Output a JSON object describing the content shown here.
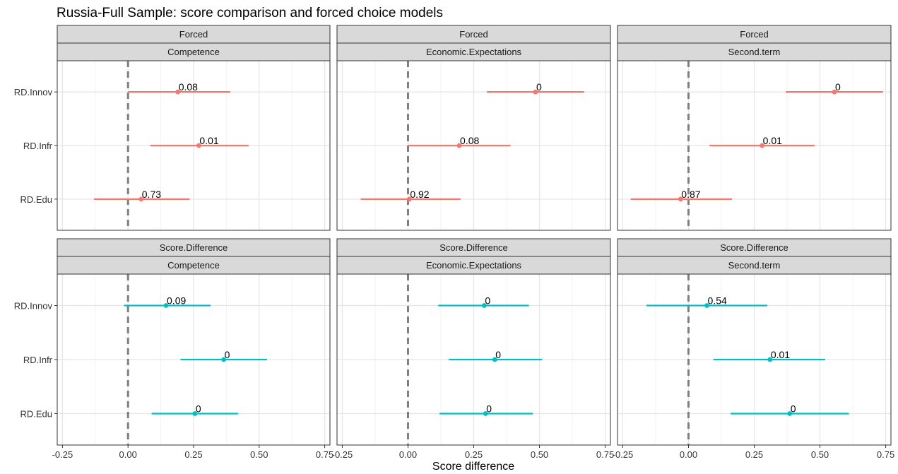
{
  "chart_data": {
    "type": "scatter",
    "subtype": "dot-and-whisker facet grid",
    "title": "Russia-Full Sample: score comparison and forced choice models",
    "xlabel": "Score difference",
    "ylabel": "",
    "xlim": [
      -0.27,
      0.77
    ],
    "x_ticks": [
      -0.25,
      0.0,
      0.25,
      0.5,
      0.75
    ],
    "x_tick_labels": [
      "-0.25",
      "0.00",
      "0.25",
      "0.50",
      "0.75"
    ],
    "reference_line": {
      "x": 0,
      "style": "dashed",
      "color": "#7f7f7f"
    },
    "categories": [
      "RD.Innov",
      "RD.Infr",
      "RD.Edu"
    ],
    "grid": true,
    "legend": "none",
    "colors": {
      "Forced": "#F8766D",
      "Score.Difference": "#00BFC4"
    },
    "panels": [
      {
        "row_label": "Forced",
        "col_label": "Competence",
        "points": [
          {
            "category": "RD.Innov",
            "estimate": 0.19,
            "low": 0.0,
            "high": 0.39,
            "label": "0.08"
          },
          {
            "category": "RD.Infr",
            "estimate": 0.27,
            "low": 0.085,
            "high": 0.46,
            "label": "0.01"
          },
          {
            "category": "RD.Edu",
            "estimate": 0.05,
            "low": -0.13,
            "high": 0.235,
            "label": "0.73"
          }
        ]
      },
      {
        "row_label": "Forced",
        "col_label": "Economic.Expectations",
        "points": [
          {
            "category": "RD.Innov",
            "estimate": 0.485,
            "low": 0.3,
            "high": 0.67,
            "label": "0"
          },
          {
            "category": "RD.Infr",
            "estimate": 0.195,
            "low": 0.0,
            "high": 0.39,
            "label": "0.08"
          },
          {
            "category": "RD.Edu",
            "estimate": 0.005,
            "low": -0.18,
            "high": 0.2,
            "label": "0.92"
          }
        ]
      },
      {
        "row_label": "Forced",
        "col_label": "Second.term",
        "points": [
          {
            "category": "RD.Innov",
            "estimate": 0.555,
            "low": 0.37,
            "high": 0.74,
            "label": "0"
          },
          {
            "category": "RD.Infr",
            "estimate": 0.28,
            "low": 0.08,
            "high": 0.48,
            "label": "0.01"
          },
          {
            "category": "RD.Edu",
            "estimate": -0.03,
            "low": -0.22,
            "high": 0.165,
            "label": "0.87"
          }
        ]
      },
      {
        "row_label": "Score.Difference",
        "col_label": "Competence",
        "points": [
          {
            "category": "RD.Innov",
            "estimate": 0.145,
            "low": -0.015,
            "high": 0.315,
            "label": "0.09"
          },
          {
            "category": "RD.Infr",
            "estimate": 0.365,
            "low": 0.2,
            "high": 0.53,
            "label": "0"
          },
          {
            "category": "RD.Edu",
            "estimate": 0.255,
            "low": 0.09,
            "high": 0.42,
            "label": "0"
          }
        ]
      },
      {
        "row_label": "Score.Difference",
        "col_label": "Economic.Expectations",
        "points": [
          {
            "category": "RD.Innov",
            "estimate": 0.29,
            "low": 0.115,
            "high": 0.46,
            "label": "0"
          },
          {
            "category": "RD.Infr",
            "estimate": 0.33,
            "low": 0.155,
            "high": 0.51,
            "label": "0"
          },
          {
            "category": "RD.Edu",
            "estimate": 0.295,
            "low": 0.12,
            "high": 0.475,
            "label": "0"
          }
        ]
      },
      {
        "row_label": "Score.Difference",
        "col_label": "Second.term",
        "points": [
          {
            "category": "RD.Innov",
            "estimate": 0.07,
            "low": -0.16,
            "high": 0.3,
            "label": "0.54"
          },
          {
            "category": "RD.Infr",
            "estimate": 0.31,
            "low": 0.095,
            "high": 0.52,
            "label": "0.01"
          },
          {
            "category": "RD.Edu",
            "estimate": 0.385,
            "low": 0.16,
            "high": 0.61,
            "label": "0"
          }
        ]
      }
    ]
  }
}
